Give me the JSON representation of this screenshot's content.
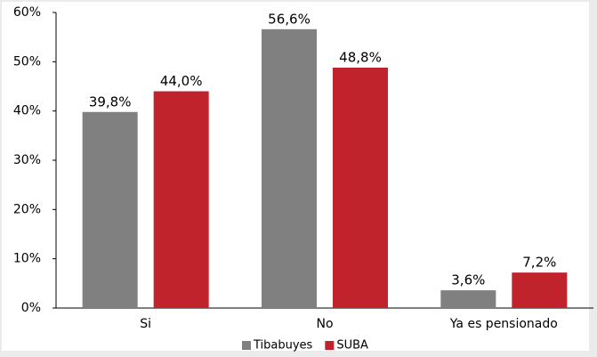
{
  "chart_data": {
    "type": "bar",
    "categories": [
      "Si",
      "No",
      "Ya es pensionado"
    ],
    "series": [
      {
        "name": "Tibabuyes",
        "color": "#808080",
        "values": [
          39.8,
          56.6,
          3.6
        ],
        "value_labels": [
          "39,8%",
          "56,6%",
          "3,6%"
        ]
      },
      {
        "name": "SUBA",
        "color": "#c0232b",
        "values": [
          44.0,
          48.8,
          7.2
        ],
        "value_labels": [
          "44,0%",
          "48,8%",
          "7,2%"
        ]
      }
    ],
    "ylim": [
      0,
      60
    ],
    "yticks": [
      {
        "value": 0,
        "label": "0%"
      },
      {
        "value": 10,
        "label": "10%"
      },
      {
        "value": 20,
        "label": "20%"
      },
      {
        "value": 30,
        "label": "30%"
      },
      {
        "value": 40,
        "label": "40%"
      },
      {
        "value": 50,
        "label": "50%"
      },
      {
        "value": 60,
        "label": "60%"
      }
    ],
    "grid": false,
    "legend": "bottom"
  }
}
